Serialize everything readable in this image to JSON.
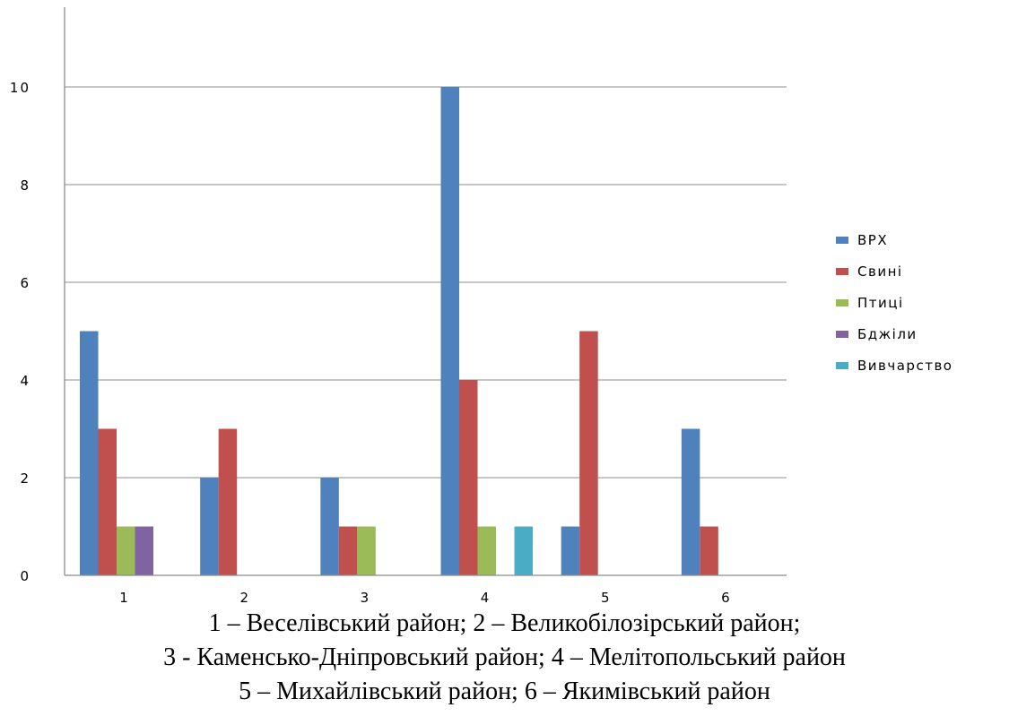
{
  "chart_data": {
    "type": "bar",
    "categories": [
      "1",
      "2",
      "3",
      "4",
      "5",
      "6"
    ],
    "series": [
      {
        "name": "ВРХ",
        "values": [
          5,
          2,
          2,
          10,
          1,
          3
        ],
        "color": "#4F81BD"
      },
      {
        "name": "Свині",
        "values": [
          3,
          3,
          1,
          4,
          5,
          1
        ],
        "color": "#C0504D"
      },
      {
        "name": "Птиці",
        "values": [
          1,
          0,
          1,
          1,
          0,
          0
        ],
        "color": "#9BBB59"
      },
      {
        "name": "Бджіли",
        "values": [
          1,
          0,
          0,
          0,
          0,
          0
        ],
        "color": "#8064A2"
      },
      {
        "name": "Вивчарство",
        "values": [
          0,
          0,
          0,
          1,
          0,
          0
        ],
        "color": "#4BACC6"
      }
    ],
    "y_ticks": [
      "0",
      "2",
      "4",
      "6",
      "8",
      "10"
    ],
    "ylim": [
      0,
      11
    ],
    "grid": true,
    "legend_position": "right",
    "title": "",
    "xlabel": "",
    "ylabel": ""
  },
  "caption": {
    "line1": "1 – Веселівський район; 2 – Великобілозірський район;",
    "line2": "3 - Каменсько-Дніпровський район; 4 – Мелітопольський район",
    "line3": "5 – Михайлівський район; 6 – Якимівський район"
  }
}
